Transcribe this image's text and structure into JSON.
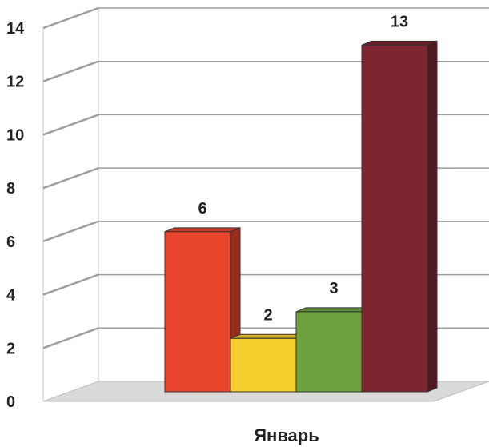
{
  "chart_data": {
    "type": "bar",
    "categories": [
      "Январь"
    ],
    "series": [
      {
        "values": [
          6
        ],
        "color": "#e8452c"
      },
      {
        "values": [
          2
        ],
        "color": "#f5cf2c"
      },
      {
        "values": [
          3
        ],
        "color": "#6fa23f"
      },
      {
        "values": [
          13
        ],
        "color": "#7d2530"
      }
    ],
    "data_labels": [
      "6",
      "2",
      "3",
      "13"
    ],
    "y_ticks": [
      "0",
      "2",
      "4",
      "6",
      "8",
      "10",
      "12",
      "14"
    ],
    "ylim": [
      0,
      14
    ],
    "grid": true,
    "style": "3d-column"
  }
}
